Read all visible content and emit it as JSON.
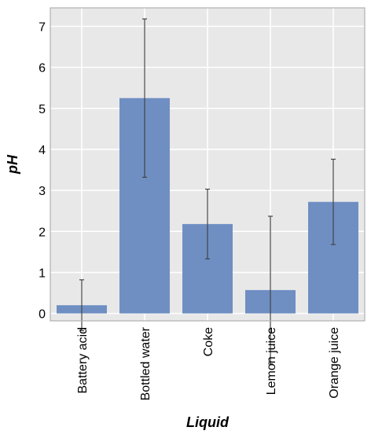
{
  "chart_data": {
    "type": "bar",
    "categories": [
      "Battery acid",
      "Bottled water",
      "Coke",
      "Lemon juice",
      "Orange juice"
    ],
    "values": [
      0.2,
      5.25,
      2.18,
      0.57,
      2.72
    ],
    "error": [
      0.62,
      1.93,
      0.85,
      1.8,
      1.04
    ],
    "xlabel": "Liquid",
    "ylabel": "pH",
    "ylim": [
      -0.18,
      7.45
    ],
    "yticks": [
      0,
      1,
      2,
      3,
      4,
      5,
      6,
      7
    ],
    "grid": true,
    "colors": {
      "bar": "#6f8fc3",
      "plot_bg": "#e8e8e8",
      "grid": "#ffffff",
      "error_bar": "#444444",
      "frame": "#b0b0b0"
    }
  }
}
